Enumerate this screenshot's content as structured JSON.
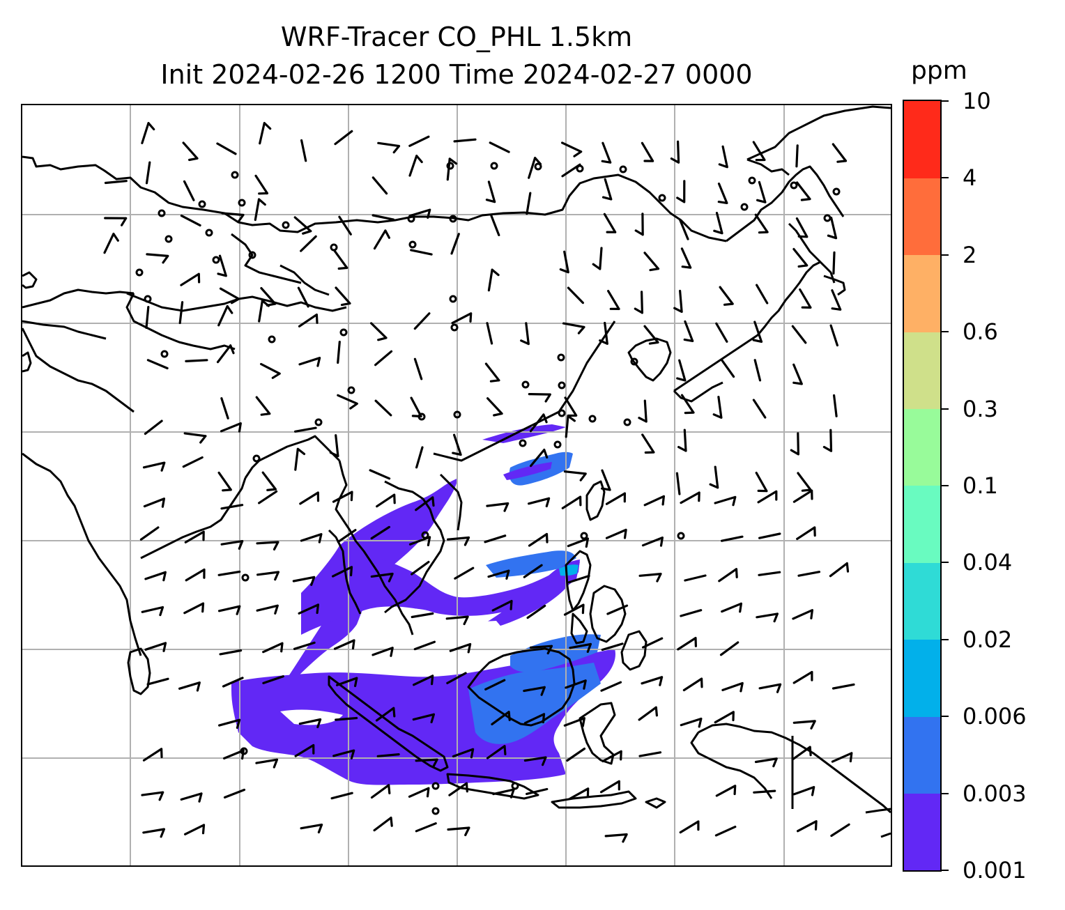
{
  "title": {
    "line1": "WRF-Tracer CO_PHL 1.5km",
    "line2": "Init 2024-02-26 1200 Time 2024-02-27 0000"
  },
  "colorbar": {
    "unit": "ppm",
    "levels": [
      "0.001",
      "0.003",
      "0.006",
      "0.02",
      "0.04",
      "0.1",
      "0.3",
      "0.6",
      "2",
      "4",
      "10"
    ],
    "colors": [
      "#6228f5",
      "#3273f0",
      "#02b0ea",
      "#2fdbd6",
      "#69fbc0",
      "#98fb9a",
      "#cfe08a",
      "#feb065",
      "#ff6d3b",
      "#ff2a1a"
    ]
  },
  "map": {
    "gridlines": true,
    "wind_barbs": "black",
    "plume_colors_used": [
      "#6228f5",
      "#3273f0",
      "#02b0ea"
    ]
  }
}
